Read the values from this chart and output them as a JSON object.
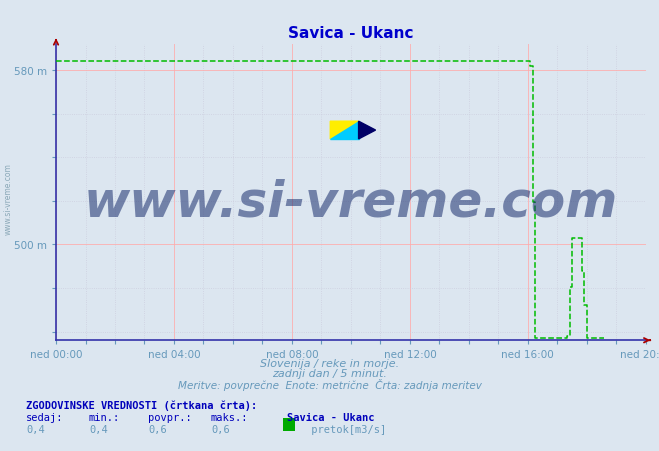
{
  "title": "Savica - Ukanc",
  "title_color": "#0000cc",
  "bg_color": "#dce6f0",
  "plot_bg_color": "#dce6f0",
  "x_tick_labels": [
    "ned 00:00",
    "ned 04:00",
    "ned 08:00",
    "ned 12:00",
    "ned 16:00",
    "ned 20:00"
  ],
  "x_ticks_pos": [
    0,
    4,
    8,
    12,
    16,
    20
  ],
  "x_min": 0,
  "x_max": 20.0,
  "y_min": 456,
  "y_max": 592,
  "y_tick_labels": [
    "500 m",
    "580 m"
  ],
  "y_ticks_pos": [
    500,
    580
  ],
  "line_color": "#00bb00",
  "line_style": "--",
  "line_width": 1.1,
  "grid_color_major": "#ffaaaa",
  "grid_color_minor": "#ccccdd",
  "axis_color": "#3333aa",
  "arrow_color": "#aa0000",
  "watermark_text": "www.si-vreme.com",
  "watermark_color": "#1a2e6e",
  "watermark_alpha": 0.55,
  "watermark_fontsize": 36,
  "subtitle1": "Slovenija / reke in morje.",
  "subtitle2": "zadnji dan / 5 minut.",
  "subtitle3": "Meritve: povprečne  Enote: metrične  Črta: zadnja meritev",
  "subtitle_color": "#6699bb",
  "footer_title": "ZGODOVINSKE VREDNOSTI (črtkana črta):",
  "footer_color": "#0000bb",
  "footer_labels": [
    "sedaj:",
    "min.:",
    "povpr.:",
    "maks.:"
  ],
  "footer_values": [
    "0,4",
    "0,4",
    "0,6",
    "0,6"
  ],
  "footer_series_name": "Savica - Ukanc",
  "footer_series_label": " pretok[m3/s]",
  "footer_series_color": "#00aa00",
  "side_text": "www.si-vreme.com",
  "side_text_color": "#7799aa",
  "flow_high": 584.5,
  "flow_mid": 503.0,
  "flow_low": 457.0,
  "drop_start": 16.08,
  "drop_end": 16.25,
  "bump_start": 17.33,
  "bump_peak": 17.5,
  "bump_end2": 17.75,
  "bump_drop_end": 18.0,
  "last_t": 18.58
}
